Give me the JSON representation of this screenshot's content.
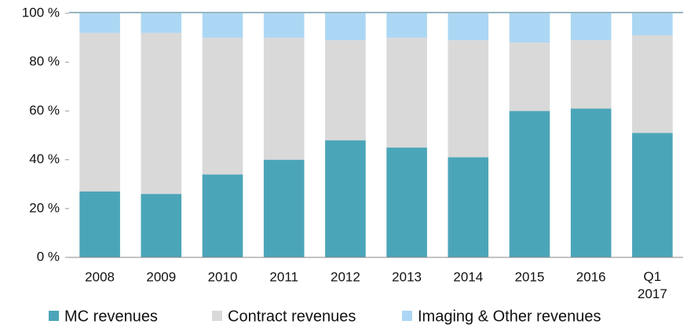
{
  "chart_data": {
    "type": "stacked_bar",
    "categories": [
      "2008",
      "2009",
      "2010",
      "2011",
      "2012",
      "2013",
      "2014",
      "2015",
      "2016",
      "Q1 2017"
    ],
    "series": [
      {
        "name": "MC revenues",
        "color": "#4ba5b9",
        "values": [
          27,
          26,
          34,
          40,
          48,
          45,
          41,
          60,
          61,
          51
        ]
      },
      {
        "name": "Contract revenues",
        "color": "#d9d9d9",
        "values": [
          65,
          66,
          56,
          50,
          41,
          45,
          48,
          28,
          28,
          40
        ]
      },
      {
        "name": "Imaging & Other revenues",
        "color": "#acd7f4",
        "values": [
          8,
          8,
          10,
          10,
          11,
          10,
          11,
          12,
          11,
          9
        ]
      }
    ],
    "ylim": [
      0,
      100
    ],
    "yticks": [
      {
        "value": 0,
        "label": "0 %"
      },
      {
        "value": 20,
        "label": "20 %"
      },
      {
        "value": 40,
        "label": "40 %"
      },
      {
        "value": 60,
        "label": "60 %"
      },
      {
        "value": 80,
        "label": "80 %"
      },
      {
        "value": 100,
        "label": "100 %"
      }
    ],
    "legend": "bottom"
  }
}
